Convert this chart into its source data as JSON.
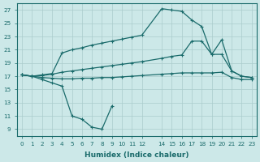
{
  "background_color": "#cce8e8",
  "grid_color": "#aacccc",
  "line_color": "#1a6b6b",
  "xlabel": "Humidex (Indice chaleur)",
  "xlim": [
    -0.5,
    23.5
  ],
  "ylim": [
    8.0,
    28.0
  ],
  "yticks": [
    9,
    11,
    13,
    15,
    17,
    19,
    21,
    23,
    25,
    27
  ],
  "xtick_pos": [
    0,
    1,
    2,
    3,
    4,
    5,
    6,
    7,
    8,
    9,
    10,
    11,
    12,
    14,
    15,
    16,
    17,
    18,
    19,
    20,
    21,
    22,
    23
  ],
  "xtick_labels": [
    "0",
    "1",
    "2",
    "3",
    "4",
    "5",
    "6",
    "7",
    "8",
    "9",
    "10",
    "11",
    "12",
    "14",
    "15",
    "16",
    "17",
    "18",
    "19",
    "20",
    "21",
    "22",
    "23"
  ],
  "curve_max_x": [
    0,
    1,
    2,
    3,
    4,
    5,
    6,
    7,
    8,
    9,
    10,
    11,
    12,
    14,
    15,
    16,
    17,
    18,
    19,
    20,
    21,
    22,
    23
  ],
  "curve_max_y": [
    17.2,
    17.0,
    17.2,
    17.4,
    20.5,
    21.0,
    21.3,
    21.7,
    22.0,
    22.3,
    22.6,
    22.9,
    23.2,
    27.2,
    27.0,
    26.8,
    25.5,
    24.5,
    20.3,
    22.5,
    17.8,
    17.0,
    16.8
  ],
  "curve_upper_x": [
    0,
    1,
    2,
    3,
    4,
    5,
    6,
    7,
    8,
    9,
    10,
    11,
    12,
    14,
    15,
    16,
    17,
    18,
    19,
    20,
    21,
    22,
    23
  ],
  "curve_upper_y": [
    17.2,
    17.0,
    17.1,
    17.3,
    17.6,
    17.8,
    18.0,
    18.2,
    18.4,
    18.6,
    18.8,
    19.0,
    19.2,
    19.7,
    20.0,
    20.2,
    22.3,
    22.3,
    20.3,
    20.3,
    17.8,
    17.0,
    16.8
  ],
  "curve_lower_x": [
    0,
    1,
    2,
    3,
    4,
    5,
    6,
    7,
    8,
    9,
    10,
    11,
    12,
    14,
    15,
    16,
    17,
    18,
    19,
    20,
    21,
    22,
    23
  ],
  "curve_lower_y": [
    17.2,
    17.0,
    16.8,
    16.7,
    16.6,
    16.6,
    16.7,
    16.7,
    16.8,
    16.8,
    16.9,
    17.0,
    17.1,
    17.3,
    17.4,
    17.5,
    17.5,
    17.5,
    17.5,
    17.6,
    16.8,
    16.5,
    16.5
  ],
  "curve_min_x": [
    0,
    1,
    2,
    3,
    4,
    5,
    6,
    7,
    8,
    9
  ],
  "curve_min_y": [
    17.2,
    17.0,
    16.5,
    16.0,
    15.5,
    11.0,
    10.5,
    9.3,
    9.0,
    12.5
  ]
}
